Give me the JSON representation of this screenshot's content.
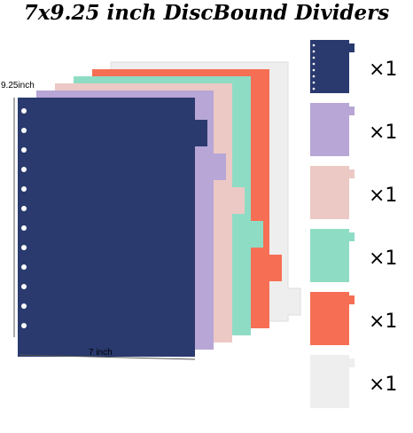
{
  "title": "7x9.25 inch DiscBound Dividers",
  "dimensions": {
    "height": "9.25inch",
    "width": "7 inch"
  },
  "dividers": [
    {
      "color": "#2a3a6e",
      "quantity": "×1"
    },
    {
      "color": "#b7a6d6",
      "quantity": "×1"
    },
    {
      "color": "#ecc9c4",
      "quantity": "×1"
    },
    {
      "color": "#8fdcc5",
      "quantity": "×1"
    },
    {
      "color": "#f66f55",
      "quantity": "×1"
    },
    {
      "color": "#eeeeee",
      "quantity": "×1"
    }
  ]
}
